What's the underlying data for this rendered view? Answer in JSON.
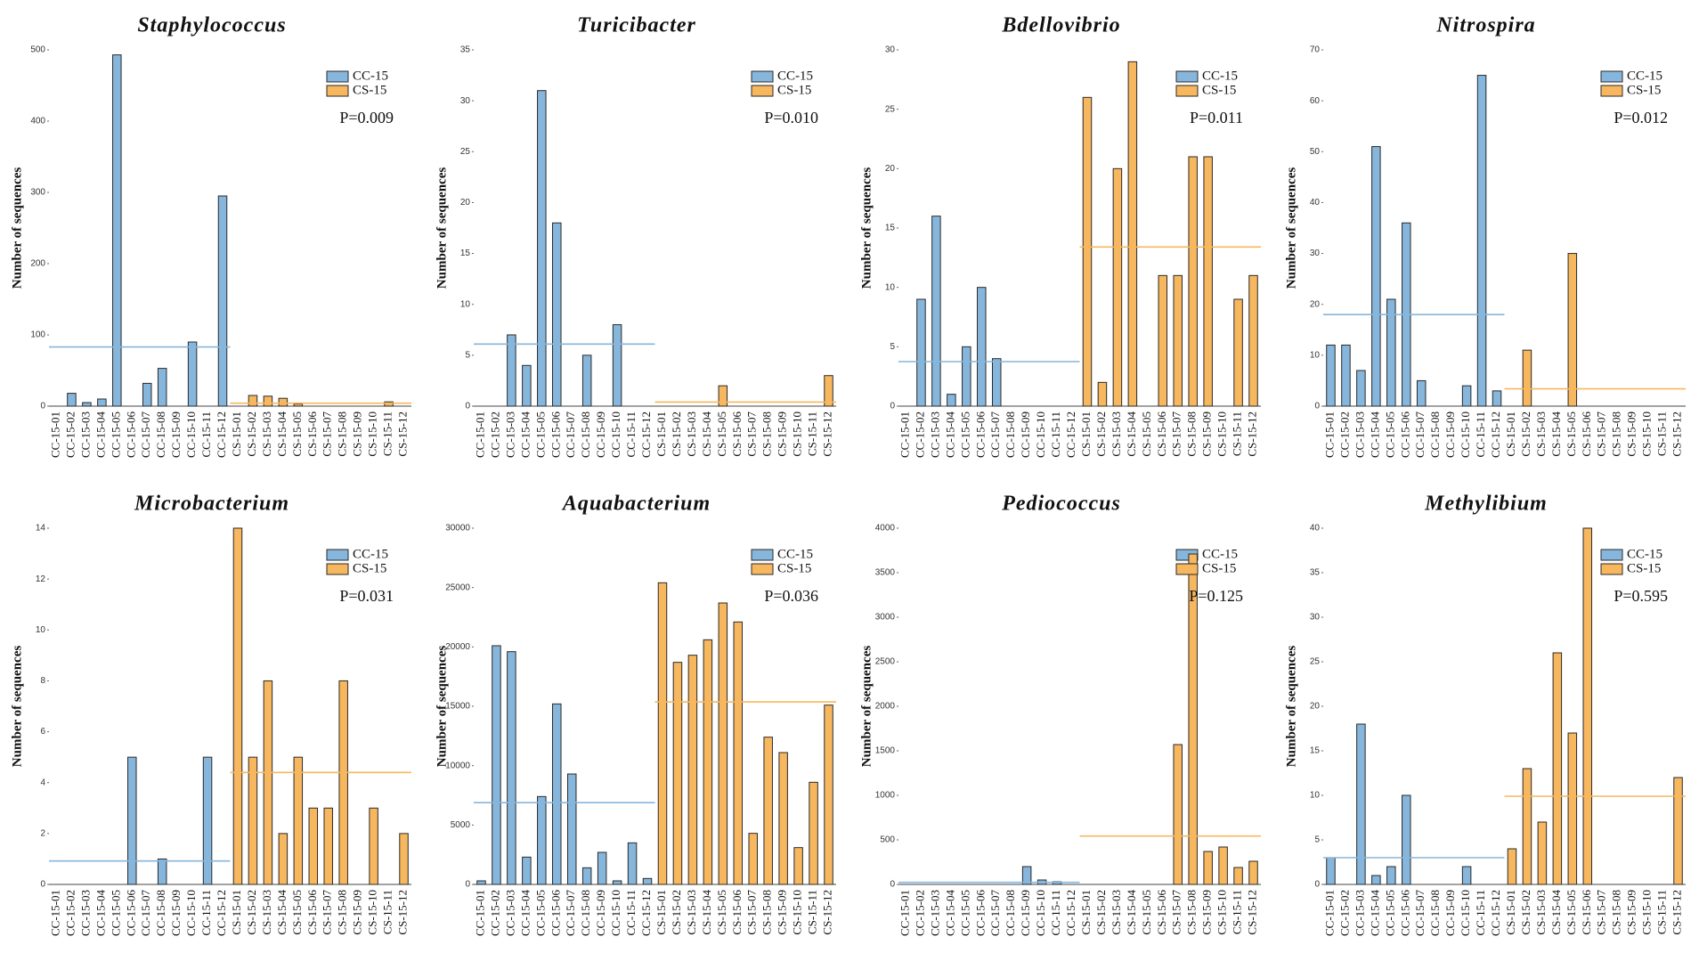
{
  "chart_data": [
    {
      "type": "bar",
      "title": "Staphylococcus",
      "ylabel": "Number of sequences",
      "annotation": "P=0.009",
      "categories": [
        "CC-15-01",
        "CC-15-02",
        "CC-15-03",
        "CC-15-04",
        "CC-15-05",
        "CC-15-06",
        "CC-15-07",
        "CC-15-08",
        "CC-15-09",
        "CC-15-10",
        "CC-15-11",
        "CC-15-12",
        "CS-15-01",
        "CS-15-02",
        "CS-15-03",
        "CS-15-04",
        "CS-15-05",
        "CS-15-06",
        "CS-15-07",
        "CS-15-08",
        "CS-15-09",
        "CS-15-10",
        "CS-15-11",
        "CS-15-12"
      ],
      "series": [
        {
          "name": "CC-15",
          "color": "#86b6dc",
          "mean": 83,
          "values": [
            0,
            18,
            5,
            10,
            493,
            0,
            32,
            53,
            0,
            90,
            0,
            295,
            null,
            null,
            null,
            null,
            null,
            null,
            null,
            null,
            null,
            null,
            null,
            null
          ]
        },
        {
          "name": "CS-15",
          "color": "#f6b75f",
          "mean": 4.1,
          "values": [
            null,
            null,
            null,
            null,
            null,
            null,
            null,
            null,
            null,
            null,
            null,
            null,
            0,
            15,
            14,
            11,
            3,
            0,
            0,
            0,
            0,
            0,
            6,
            0
          ]
        }
      ],
      "ylim": [
        0,
        500
      ],
      "yticks": [
        0,
        100,
        200,
        300,
        400,
        500
      ]
    },
    {
      "type": "bar",
      "title": "Turicibacter",
      "ylabel": "Number of sequences",
      "annotation": "P=0.010",
      "categories": [
        "CC-15-01",
        "CC-15-02",
        "CC-15-03",
        "CC-15-04",
        "CC-15-05",
        "CC-15-06",
        "CC-15-07",
        "CC-15-08",
        "CC-15-09",
        "CC-15-10",
        "CC-15-11",
        "CC-15-12",
        "CS-15-01",
        "CS-15-02",
        "CS-15-03",
        "CS-15-04",
        "CS-15-05",
        "CS-15-06",
        "CS-15-07",
        "CS-15-08",
        "CS-15-09",
        "CS-15-10",
        "CS-15-11",
        "CS-15-12"
      ],
      "series": [
        {
          "name": "CC-15",
          "color": "#86b6dc",
          "mean": 6.1,
          "values": [
            0,
            0,
            7,
            4,
            31,
            18,
            0,
            5,
            0,
            8,
            0,
            0,
            null,
            null,
            null,
            null,
            null,
            null,
            null,
            null,
            null,
            null,
            null,
            null
          ]
        },
        {
          "name": "CS-15",
          "color": "#f6b75f",
          "mean": 0.4,
          "values": [
            null,
            null,
            null,
            null,
            null,
            null,
            null,
            null,
            null,
            null,
            null,
            null,
            0,
            0,
            0,
            0,
            2,
            0,
            0,
            0,
            0,
            0,
            0,
            3
          ]
        }
      ],
      "ylim": [
        0,
        35
      ],
      "yticks": [
        0,
        5,
        10,
        15,
        20,
        25,
        30,
        35
      ]
    },
    {
      "type": "bar",
      "title": "Bdellovibrio",
      "ylabel": "Number of sequences",
      "annotation": "P=0.011",
      "categories": [
        "CC-15-01",
        "CC-15-02",
        "CC-15-03",
        "CC-15-04",
        "CC-15-05",
        "CC-15-06",
        "CC-15-07",
        "CC-15-08",
        "CC-15-09",
        "CC-15-10",
        "CC-15-11",
        "CC-15-12",
        "CS-15-01",
        "CS-15-02",
        "CS-15-03",
        "CS-15-04",
        "CS-15-05",
        "CS-15-06",
        "CS-15-07",
        "CS-15-08",
        "CS-15-09",
        "CS-15-10",
        "CS-15-11",
        "CS-15-12"
      ],
      "series": [
        {
          "name": "CC-15",
          "color": "#86b6dc",
          "mean": 3.75,
          "values": [
            0,
            9,
            16,
            1,
            5,
            10,
            4,
            0,
            0,
            0,
            0,
            0,
            null,
            null,
            null,
            null,
            null,
            null,
            null,
            null,
            null,
            null,
            null,
            null
          ]
        },
        {
          "name": "CS-15",
          "color": "#f6b75f",
          "mean": 13.4,
          "values": [
            null,
            null,
            null,
            null,
            null,
            null,
            null,
            null,
            null,
            null,
            null,
            null,
            26,
            2,
            20,
            29,
            0,
            11,
            11,
            21,
            21,
            0,
            9,
            11
          ]
        }
      ],
      "ylim": [
        0,
        30
      ],
      "yticks": [
        0,
        5,
        10,
        15,
        20,
        25,
        30
      ]
    },
    {
      "type": "bar",
      "title": "Nitrospira",
      "ylabel": "Number of sequences",
      "annotation": "P=0.012",
      "categories": [
        "CC-15-01",
        "CC-15-02",
        "CC-15-03",
        "CC-15-04",
        "CC-15-05",
        "CC-15-06",
        "CC-15-07",
        "CC-15-08",
        "CC-15-09",
        "CC-15-10",
        "CC-15-11",
        "CC-15-12",
        "CS-15-01",
        "CS-15-02",
        "CS-15-03",
        "CS-15-04",
        "CS-15-05",
        "CS-15-06",
        "CS-15-07",
        "CS-15-08",
        "CS-15-09",
        "CS-15-10",
        "CS-15-11",
        "CS-15-12"
      ],
      "series": [
        {
          "name": "CC-15",
          "color": "#86b6dc",
          "mean": 18,
          "values": [
            12,
            12,
            7,
            51,
            21,
            36,
            5,
            0,
            0,
            4,
            65,
            3,
            null,
            null,
            null,
            null,
            null,
            null,
            null,
            null,
            null,
            null,
            null,
            null
          ]
        },
        {
          "name": "CS-15",
          "color": "#f6b75f",
          "mean": 3.4,
          "values": [
            null,
            null,
            null,
            null,
            null,
            null,
            null,
            null,
            null,
            null,
            null,
            null,
            0,
            11,
            0,
            0,
            30,
            0,
            0,
            0,
            0,
            0,
            0,
            0
          ]
        }
      ],
      "ylim": [
        0,
        70
      ],
      "yticks": [
        0,
        10,
        20,
        30,
        40,
        50,
        60,
        70
      ]
    },
    {
      "type": "bar",
      "title": "Microbacterium",
      "ylabel": "Number of sequences",
      "annotation": "P=0.031",
      "categories": [
        "CC-15-01",
        "CC-15-02",
        "CC-15-03",
        "CC-15-04",
        "CC-15-05",
        "CC-15-06",
        "CC-15-07",
        "CC-15-08",
        "CC-15-09",
        "CC-15-10",
        "CC-15-11",
        "CC-15-12",
        "CS-15-01",
        "CS-15-02",
        "CS-15-03",
        "CS-15-04",
        "CS-15-05",
        "CS-15-06",
        "CS-15-07",
        "CS-15-08",
        "CS-15-09",
        "CS-15-10",
        "CS-15-11",
        "CS-15-12"
      ],
      "series": [
        {
          "name": "CC-15",
          "color": "#86b6dc",
          "mean": 0.92,
          "values": [
            0,
            0,
            0,
            0,
            0,
            5,
            0,
            1,
            0,
            0,
            5,
            0,
            null,
            null,
            null,
            null,
            null,
            null,
            null,
            null,
            null,
            null,
            null,
            null
          ]
        },
        {
          "name": "CS-15",
          "color": "#f6b75f",
          "mean": 4.4,
          "values": [
            null,
            null,
            null,
            null,
            null,
            null,
            null,
            null,
            null,
            null,
            null,
            null,
            14,
            5,
            8,
            2,
            5,
            3,
            3,
            8,
            0,
            3,
            0,
            2
          ]
        }
      ],
      "ylim": [
        0,
        14
      ],
      "yticks": [
        0,
        2,
        4,
        6,
        8,
        10,
        12,
        14
      ]
    },
    {
      "type": "bar",
      "title": "Aquabacterium",
      "ylabel": "Number of sequences",
      "annotation": "P=0.036",
      "categories": [
        "CC-15-01",
        "CC-15-02",
        "CC-15-03",
        "CC-15-04",
        "CC-15-05",
        "CC-15-06",
        "CC-15-07",
        "CC-15-08",
        "CC-15-09",
        "CC-15-10",
        "CC-15-11",
        "CC-15-12",
        "CS-15-01",
        "CS-15-02",
        "CS-15-03",
        "CS-15-04",
        "CS-15-05",
        "CS-15-06",
        "CS-15-07",
        "CS-15-08",
        "CS-15-09",
        "CS-15-10",
        "CS-15-11",
        "CS-15-12"
      ],
      "series": [
        {
          "name": "CC-15",
          "color": "#86b6dc",
          "mean": 6883,
          "values": [
            300,
            20100,
            19600,
            2300,
            7400,
            15200,
            9300,
            1400,
            2700,
            300,
            3500,
            500,
            null,
            null,
            null,
            null,
            null,
            null,
            null,
            null,
            null,
            null,
            null,
            null
          ]
        },
        {
          "name": "CS-15",
          "color": "#f6b75f",
          "mean": 15367,
          "values": [
            null,
            null,
            null,
            null,
            null,
            null,
            null,
            null,
            null,
            null,
            null,
            null,
            25400,
            18700,
            19300,
            20600,
            23700,
            22100,
            4300,
            12400,
            11100,
            3100,
            8600,
            15100
          ]
        }
      ],
      "ylim": [
        0,
        30000
      ],
      "yticks": [
        0,
        5000,
        10000,
        15000,
        20000,
        25000,
        30000
      ]
    },
    {
      "type": "bar",
      "title": "Pediococcus",
      "ylabel": "Number of sequences",
      "annotation": "P=0.125",
      "categories": [
        "CC-15-01",
        "CC-15-02",
        "CC-15-03",
        "CC-15-04",
        "CC-15-05",
        "CC-15-06",
        "CC-15-07",
        "CC-15-08",
        "CC-15-09",
        "CC-15-10",
        "CC-15-11",
        "CC-15-12",
        "CS-15-01",
        "CS-15-02",
        "CS-15-03",
        "CS-15-04",
        "CS-15-05",
        "CS-15-06",
        "CS-15-07",
        "CS-15-08",
        "CS-15-09",
        "CS-15-10",
        "CS-15-11",
        "CS-15-12"
      ],
      "series": [
        {
          "name": "CC-15",
          "color": "#86b6dc",
          "mean": 23,
          "values": [
            0,
            0,
            0,
            0,
            0,
            0,
            0,
            0,
            200,
            50,
            30,
            0,
            null,
            null,
            null,
            null,
            null,
            null,
            null,
            null,
            null,
            null,
            null,
            null
          ]
        },
        {
          "name": "CS-15",
          "color": "#f6b75f",
          "mean": 543,
          "values": [
            null,
            null,
            null,
            null,
            null,
            null,
            null,
            null,
            null,
            null,
            null,
            null,
            0,
            0,
            0,
            0,
            0,
            0,
            1570,
            3710,
            370,
            420,
            190,
            260
          ]
        }
      ],
      "ylim": [
        0,
        4000
      ],
      "yticks": [
        0,
        500,
        1000,
        1500,
        2000,
        2500,
        3000,
        3500,
        4000
      ]
    },
    {
      "type": "bar",
      "title": "Methylibium",
      "ylabel": "Number of sequences",
      "annotation": "P=0.595",
      "categories": [
        "CC-15-01",
        "CC-15-02",
        "CC-15-03",
        "CC-15-04",
        "CC-15-05",
        "CC-15-06",
        "CC-15-07",
        "CC-15-08",
        "CC-15-09",
        "CC-15-10",
        "CC-15-11",
        "CC-15-12",
        "CS-15-01",
        "CS-15-02",
        "CS-15-03",
        "CS-15-04",
        "CS-15-05",
        "CS-15-06",
        "CS-15-07",
        "CS-15-08",
        "CS-15-09",
        "CS-15-10",
        "CS-15-11",
        "CS-15-12"
      ],
      "series": [
        {
          "name": "CC-15",
          "color": "#86b6dc",
          "mean": 3,
          "values": [
            3,
            0,
            18,
            1,
            2,
            10,
            0,
            0,
            0,
            2,
            0,
            0,
            null,
            null,
            null,
            null,
            null,
            null,
            null,
            null,
            null,
            null,
            null,
            null
          ]
        },
        {
          "name": "CS-15",
          "color": "#f6b75f",
          "mean": 9.9,
          "values": [
            null,
            null,
            null,
            null,
            null,
            null,
            null,
            null,
            null,
            null,
            null,
            null,
            4,
            13,
            7,
            26,
            17,
            40,
            0,
            0,
            0,
            0,
            0,
            12
          ]
        }
      ],
      "ylim": [
        0,
        40
      ],
      "yticks": [
        0,
        5,
        10,
        15,
        20,
        25,
        30,
        35,
        40
      ]
    }
  ]
}
